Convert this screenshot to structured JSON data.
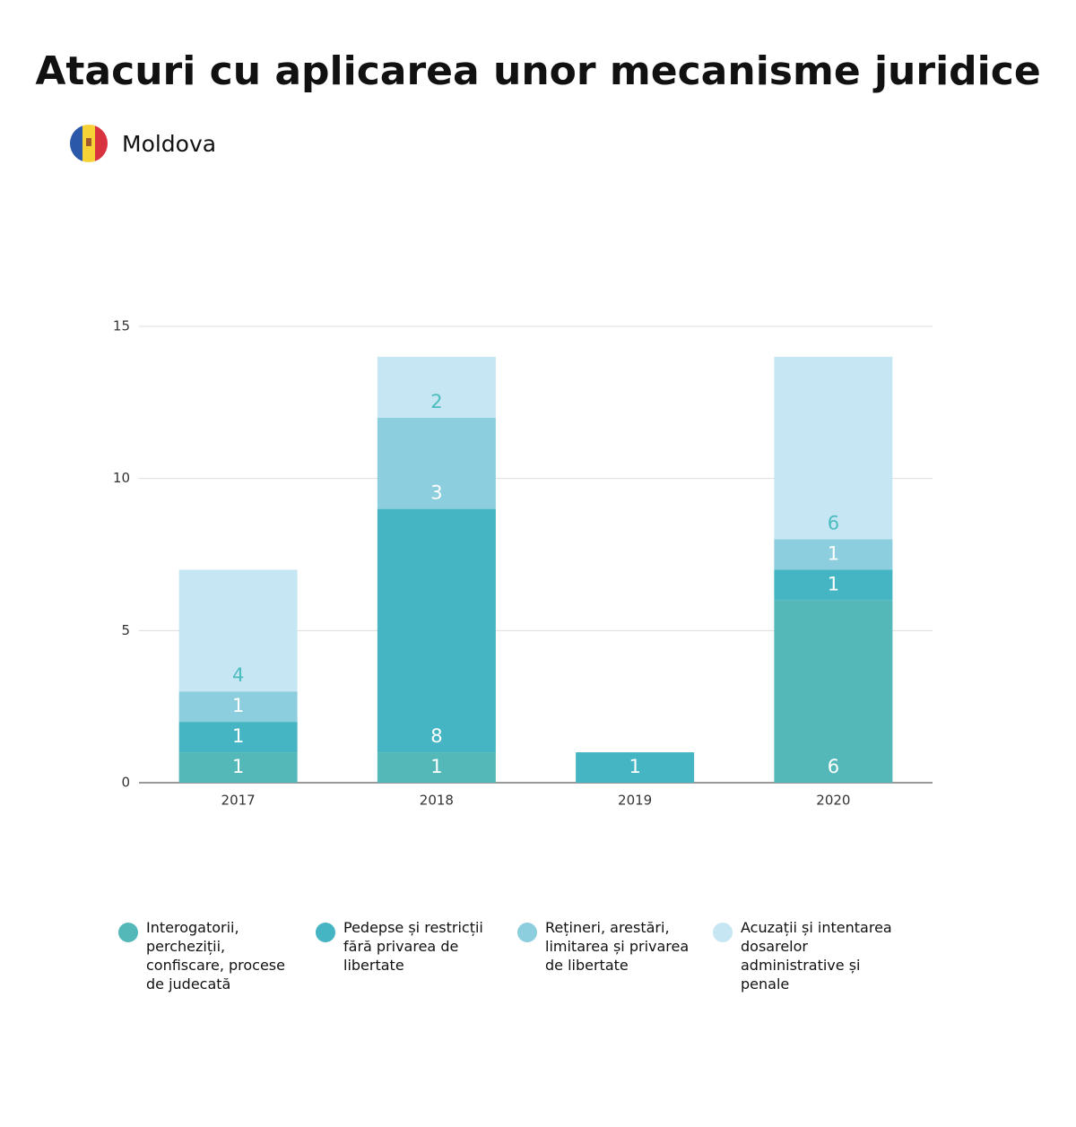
{
  "chart_data": {
    "type": "stacked_bar",
    "title": "Atacuri cu aplicarea unor mecanisme juridice",
    "subtitle": "Moldova",
    "categories": [
      "2017",
      "2018",
      "2019",
      "2020"
    ],
    "series": [
      {
        "name": "Interogatorii, percheziții, confiscare, procese de judecată",
        "color": "#55b8b8",
        "values": [
          1,
          1,
          null,
          6
        ]
      },
      {
        "name": "Pedepse și restricții fără privarea de libertate",
        "color": "#45b5c4",
        "values": [
          1,
          8,
          1,
          1
        ]
      },
      {
        "name": "Rețineri, arestări, limitarea și privarea de libertate",
        "color": "#8ccede",
        "values": [
          1,
          3,
          null,
          1
        ]
      },
      {
        "name": "Acuzații și intentarea dosarelor administrative și penale",
        "color": "#c5e6f2",
        "values": [
          4,
          2,
          null,
          6
        ]
      }
    ],
    "ylim": [
      0,
      15
    ],
    "yticks": [
      0,
      5,
      10,
      15
    ],
    "grid": true
  }
}
